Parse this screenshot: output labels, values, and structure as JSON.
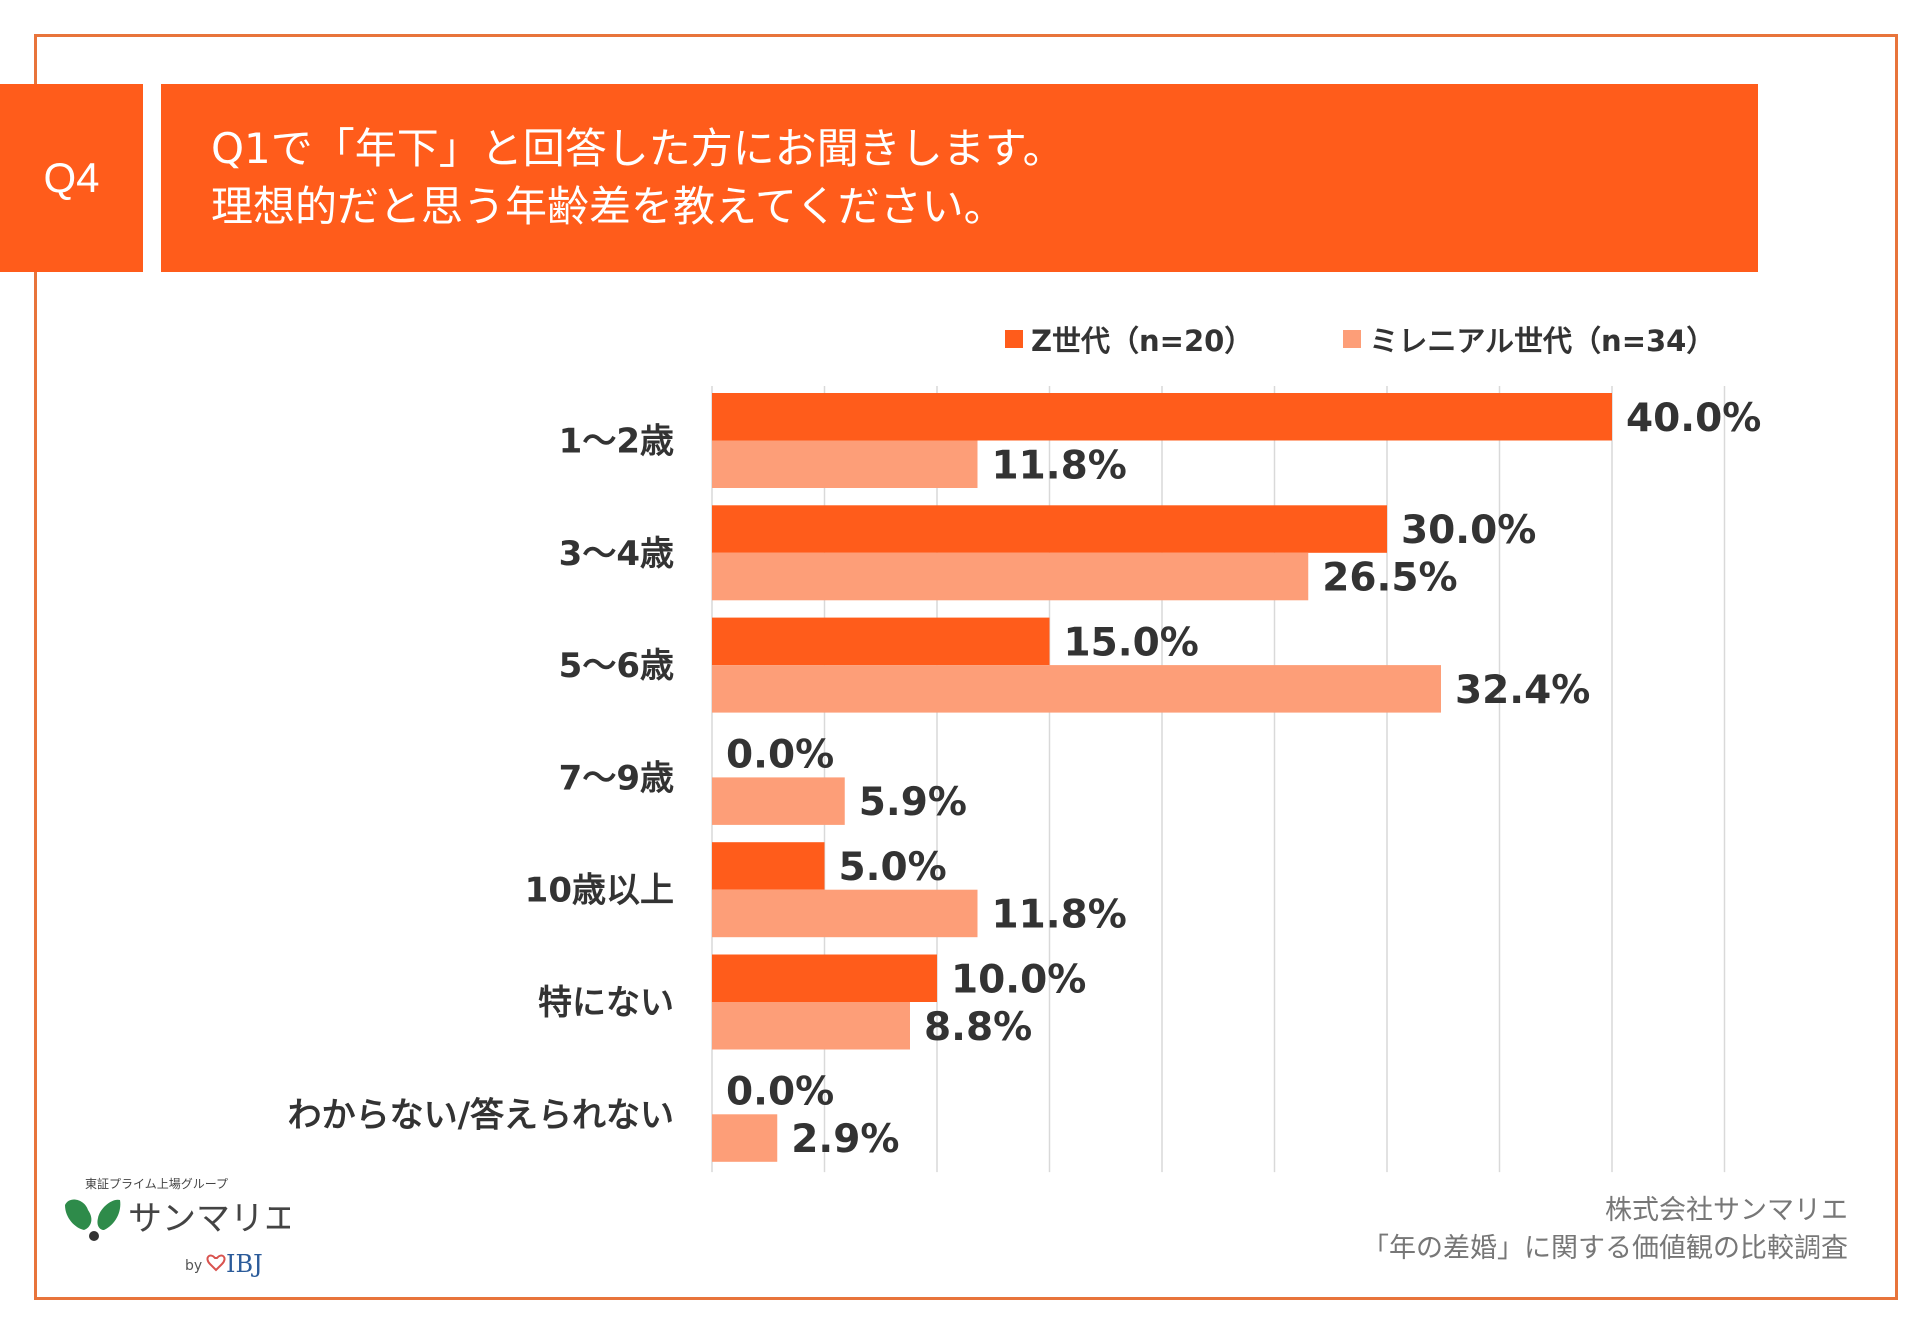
{
  "header": {
    "q_label": "Q4",
    "title_line1": "Q1で「年下」と回答した方にお聞きします。",
    "title_line2": "理想的だと思う年齢差を教えてください。"
  },
  "footer": {
    "company": "株式会社サンマリエ",
    "survey": "「年の差婚」に関する価値観の比較調査"
  },
  "logo": {
    "tagline": "東証プライム上場グループ",
    "name": "サンマリエ",
    "by": "by",
    "brand": "IBJ"
  },
  "chart_data": {
    "type": "bar",
    "orientation": "horizontal",
    "categories": [
      "1〜2歳",
      "3〜4歳",
      "5〜6歳",
      "7〜9歳",
      "10歳以上",
      "特にない",
      "わからない/答えられない"
    ],
    "series": [
      {
        "name": "Z世代（n=20）",
        "color": "#FF5C1B",
        "values": [
          40.0,
          30.0,
          15.0,
          0.0,
          5.0,
          10.0,
          0.0
        ]
      },
      {
        "name": "ミレニアル世代（n=34）",
        "color": "#FD9E78",
        "values": [
          11.8,
          26.5,
          32.4,
          5.9,
          11.8,
          8.8,
          2.9
        ]
      }
    ],
    "unit": "%",
    "xlim": [
      0,
      45
    ],
    "grid": true,
    "legend": "top-right"
  }
}
